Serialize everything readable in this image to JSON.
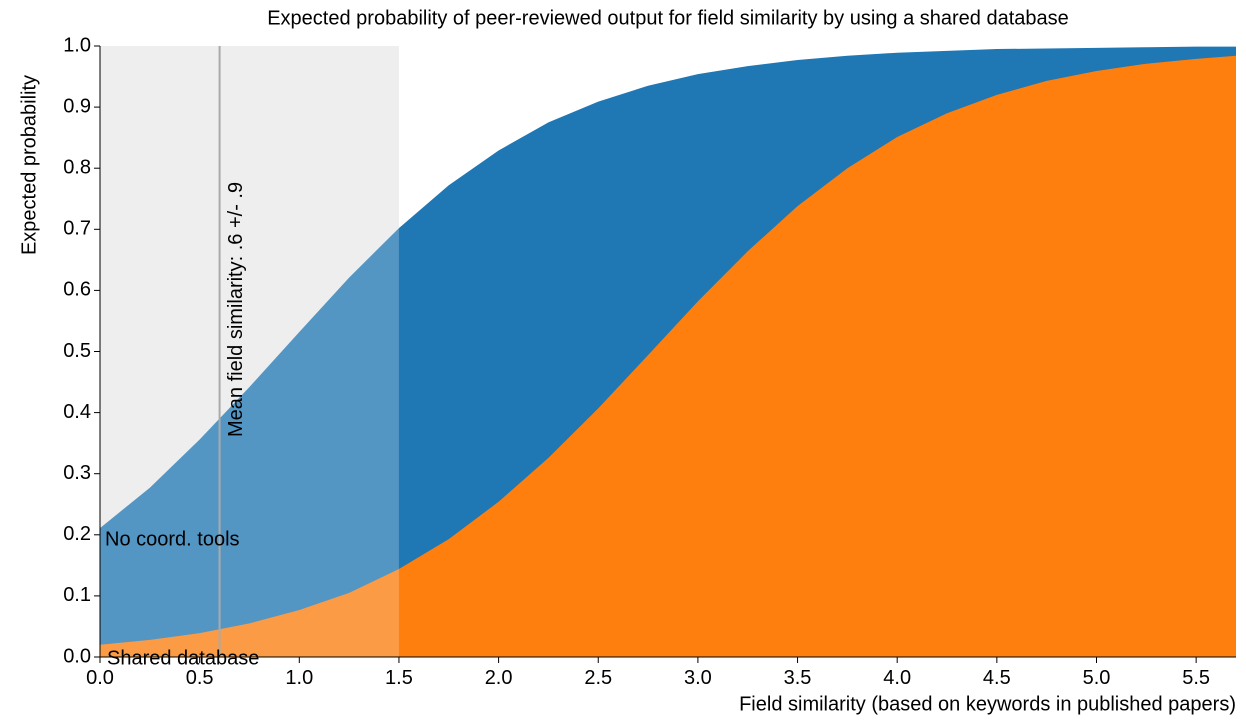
{
  "chart_data": {
    "type": "area",
    "title": "Expected probability of peer-reviewed output for field similarity by using a shared database",
    "x_label": "Field similarity (based on keywords in published papers)",
    "y_label": "Expected probability",
    "annotation": "Mean field similarity: .6 +/- .9",
    "mean_line": 0.6,
    "shaded_xrange": [
      0,
      1.5
    ],
    "x": [
      0,
      0.25,
      0.5,
      0.75,
      1.0,
      1.25,
      1.5,
      1.75,
      2.0,
      2.25,
      2.5,
      2.75,
      3.0,
      3.25,
      3.5,
      3.75,
      4.0,
      4.25,
      4.5,
      4.75,
      5.0,
      5.25,
      5.5,
      5.7
    ],
    "series": [
      {
        "name": "No coord. tools",
        "color": "#1f77b4",
        "values": [
          0.211,
          0.277,
          0.356,
          0.442,
          0.532,
          0.621,
          0.702,
          0.772,
          0.829,
          0.875,
          0.909,
          0.935,
          0.954,
          0.967,
          0.977,
          0.984,
          0.989,
          0.992,
          0.995,
          0.996,
          0.997,
          0.998,
          0.999,
          0.999
        ]
      },
      {
        "name": "Shared database",
        "color": "#ff7f0e",
        "values": [
          0.02,
          0.028,
          0.039,
          0.055,
          0.077,
          0.105,
          0.144,
          0.193,
          0.254,
          0.326,
          0.407,
          0.494,
          0.582,
          0.664,
          0.738,
          0.8,
          0.851,
          0.89,
          0.92,
          0.943,
          0.959,
          0.971,
          0.979,
          0.984
        ]
      }
    ],
    "xlim": [
      0,
      5.7
    ],
    "ylim": [
      0,
      1
    ],
    "xticks": [
      {
        "value": 0,
        "label": "0.0"
      },
      0.5,
      {
        "value": 1,
        "label": "1.0"
      },
      1.5,
      {
        "value": 2,
        "label": "2.0"
      },
      2.5,
      {
        "value": 3,
        "label": "3.0"
      },
      3.5,
      {
        "value": 4,
        "label": "4.0"
      },
      4.5,
      {
        "value": 5,
        "label": "5.0"
      },
      5.5
    ],
    "yticks": [
      {
        "value": 0,
        "label": "0.0"
      },
      0.1,
      0.2,
      0.3,
      0.4,
      0.5,
      0.6,
      0.7,
      0.8,
      0.9,
      {
        "value": 1,
        "label": "1.0"
      }
    ]
  }
}
